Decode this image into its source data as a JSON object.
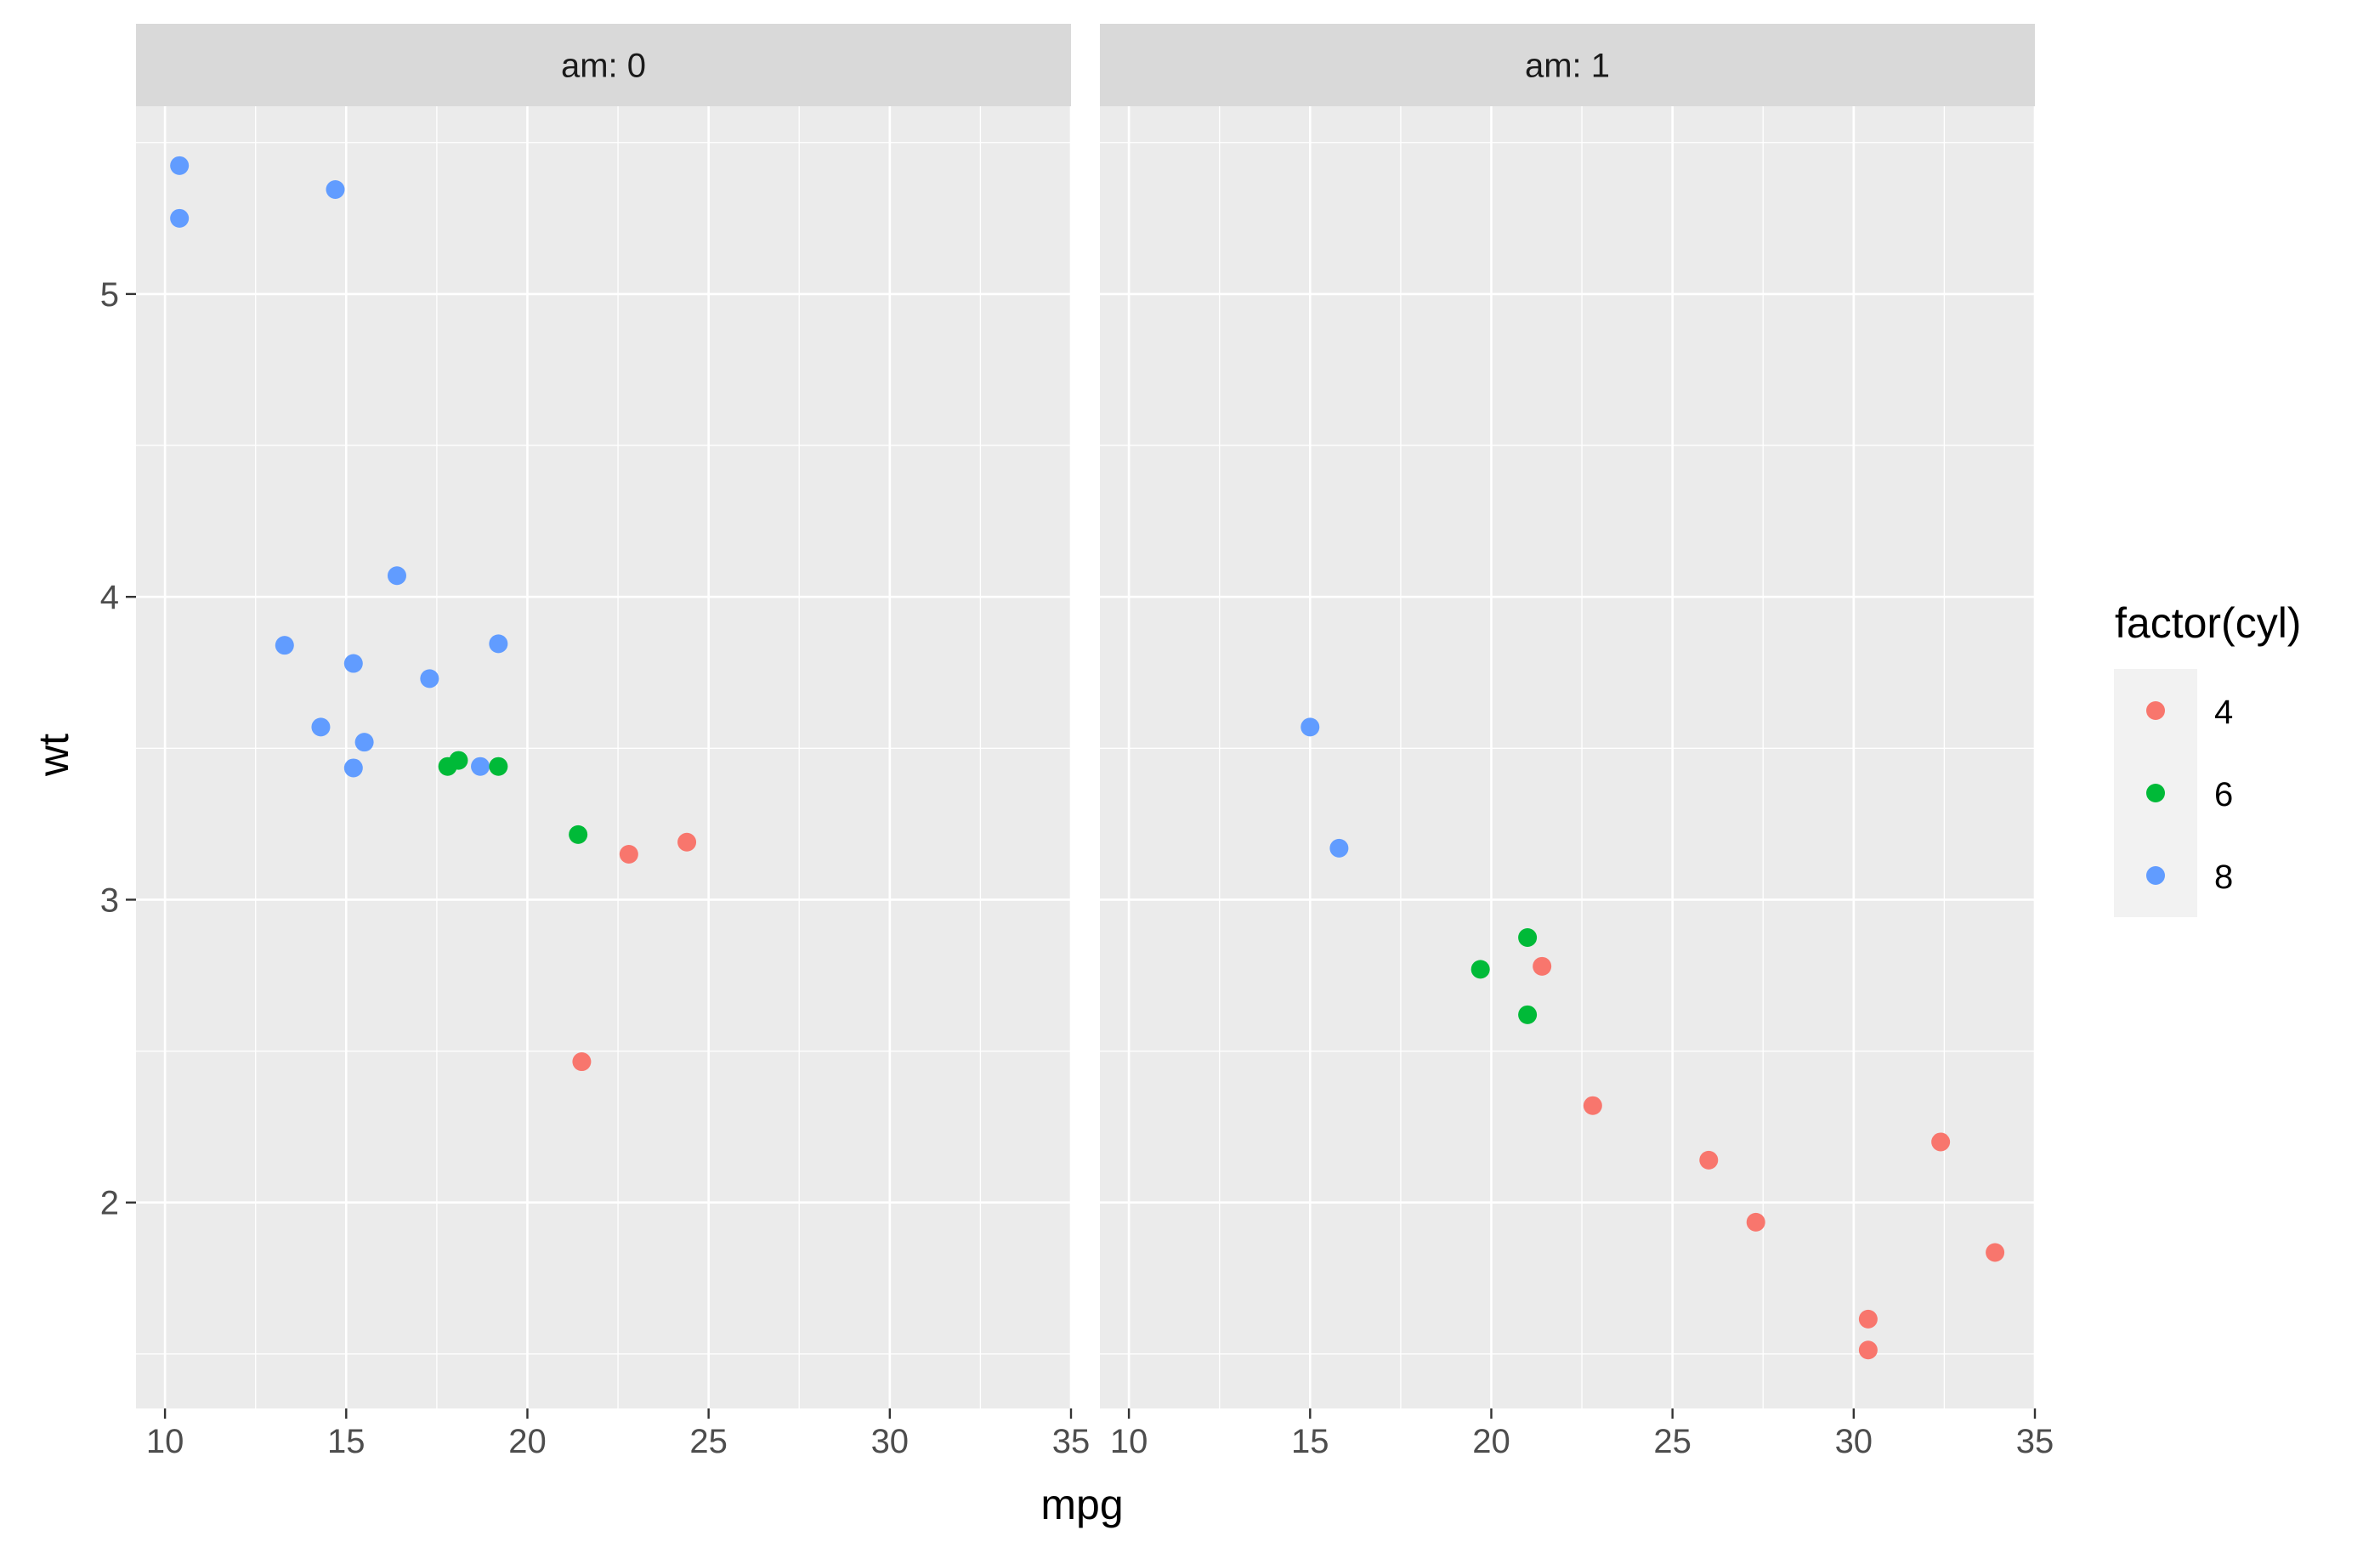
{
  "chart_data": {
    "type": "scatter",
    "facet_variable": "am",
    "panels": [
      {
        "strip_label": "am: 0",
        "points": [
          {
            "x": 21.4,
            "y": 3.215,
            "cyl": "6"
          },
          {
            "x": 18.7,
            "y": 3.44,
            "cyl": "8"
          },
          {
            "x": 18.1,
            "y": 3.46,
            "cyl": "6"
          },
          {
            "x": 14.3,
            "y": 3.57,
            "cyl": "8"
          },
          {
            "x": 24.4,
            "y": 3.19,
            "cyl": "4"
          },
          {
            "x": 22.8,
            "y": 3.15,
            "cyl": "4"
          },
          {
            "x": 19.2,
            "y": 3.44,
            "cyl": "6"
          },
          {
            "x": 17.8,
            "y": 3.44,
            "cyl": "6"
          },
          {
            "x": 16.4,
            "y": 4.07,
            "cyl": "8"
          },
          {
            "x": 17.3,
            "y": 3.73,
            "cyl": "8"
          },
          {
            "x": 15.2,
            "y": 3.78,
            "cyl": "8"
          },
          {
            "x": 10.4,
            "y": 5.25,
            "cyl": "8"
          },
          {
            "x": 10.4,
            "y": 5.424,
            "cyl": "8"
          },
          {
            "x": 14.7,
            "y": 5.345,
            "cyl": "8"
          },
          {
            "x": 21.5,
            "y": 2.465,
            "cyl": "4"
          },
          {
            "x": 15.5,
            "y": 3.52,
            "cyl": "8"
          },
          {
            "x": 15.2,
            "y": 3.435,
            "cyl": "8"
          },
          {
            "x": 13.3,
            "y": 3.84,
            "cyl": "8"
          },
          {
            "x": 19.2,
            "y": 3.845,
            "cyl": "8"
          }
        ]
      },
      {
        "strip_label": "am: 1",
        "points": [
          {
            "x": 21.0,
            "y": 2.62,
            "cyl": "6"
          },
          {
            "x": 21.0,
            "y": 2.875,
            "cyl": "6"
          },
          {
            "x": 22.8,
            "y": 2.32,
            "cyl": "4"
          },
          {
            "x": 32.4,
            "y": 2.2,
            "cyl": "4"
          },
          {
            "x": 30.4,
            "y": 1.615,
            "cyl": "4"
          },
          {
            "x": 33.9,
            "y": 1.835,
            "cyl": "4"
          },
          {
            "x": 27.3,
            "y": 1.935,
            "cyl": "4"
          },
          {
            "x": 26.0,
            "y": 2.14,
            "cyl": "4"
          },
          {
            "x": 30.4,
            "y": 1.513,
            "cyl": "4"
          },
          {
            "x": 15.8,
            "y": 3.17,
            "cyl": "8"
          },
          {
            "x": 19.7,
            "y": 2.77,
            "cyl": "6"
          },
          {
            "x": 15.0,
            "y": 3.57,
            "cyl": "8"
          },
          {
            "x": 21.4,
            "y": 2.78,
            "cyl": "4"
          }
        ]
      }
    ],
    "xlabel": "mpg",
    "ylabel": "wt",
    "xlim": [
      9.2,
      35.0
    ],
    "ylim": [
      1.32,
      5.62
    ],
    "x_ticks": [
      10,
      15,
      20,
      25,
      30,
      35
    ],
    "y_ticks": [
      2,
      3,
      4,
      5
    ],
    "grid": true,
    "legend": {
      "title": "factor(cyl)",
      "placement": "right",
      "entries": [
        {
          "label": "4",
          "color": "#F8766D"
        },
        {
          "label": "6",
          "color": "#00BA38"
        },
        {
          "label": "8",
          "color": "#619CFF"
        }
      ]
    },
    "colors": {
      "panel_background": "#EBEBEB",
      "strip_background": "#D9D9D9",
      "grid": "#FFFFFF",
      "axis_ticks": "#333333"
    }
  }
}
